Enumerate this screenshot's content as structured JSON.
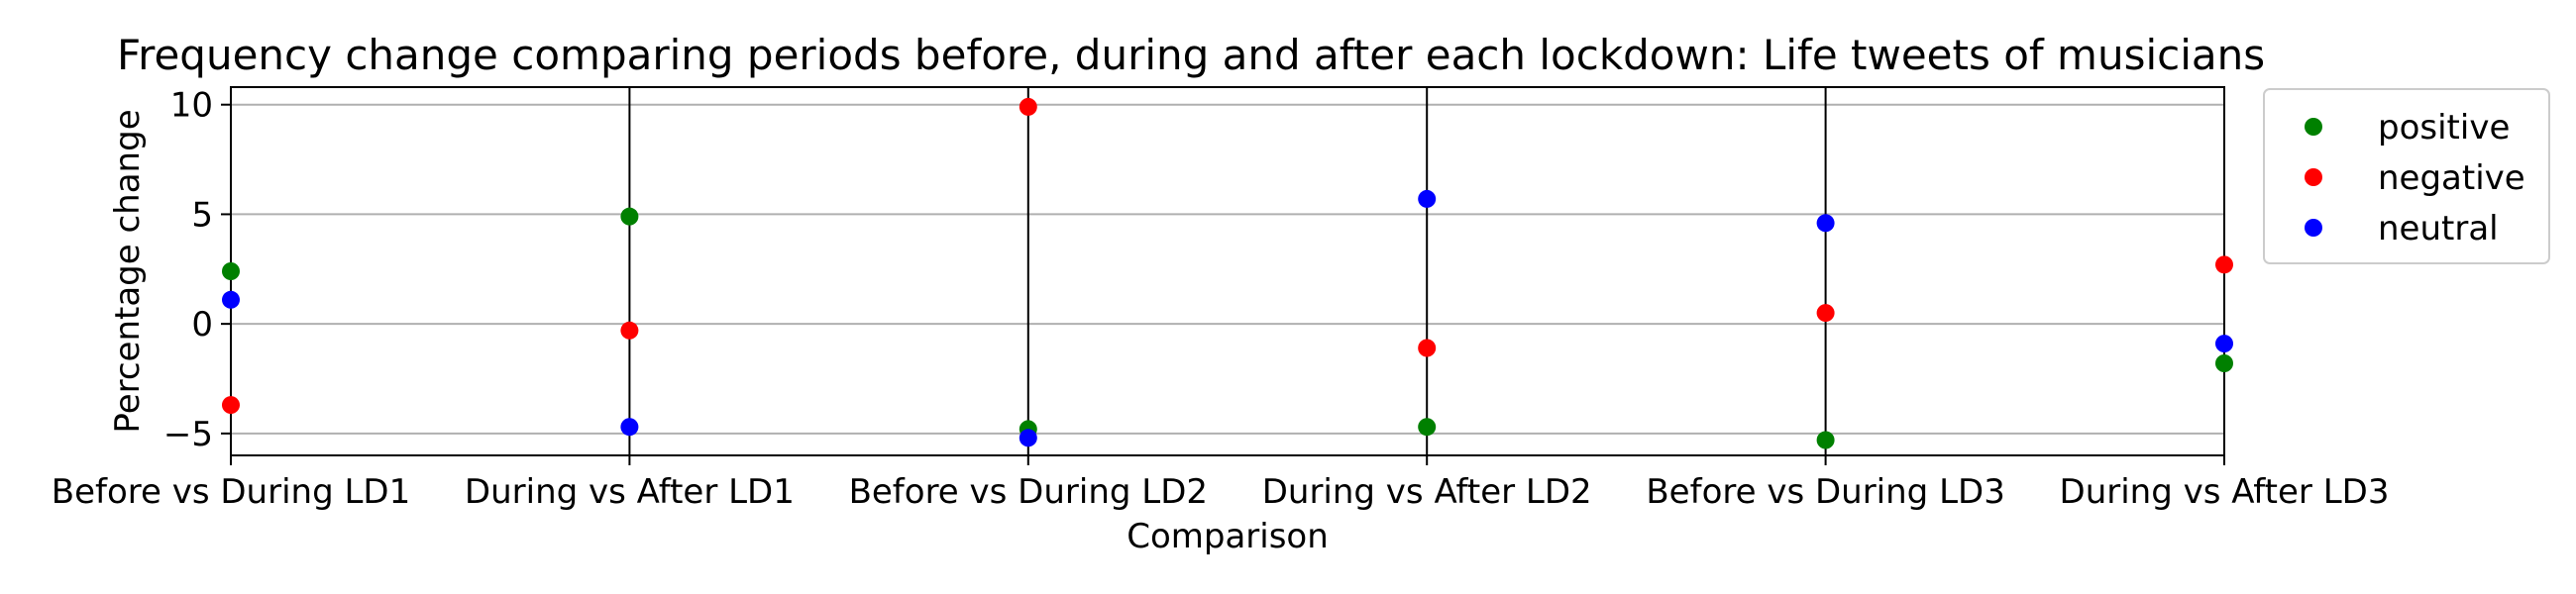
{
  "chart_data": {
    "type": "scatter",
    "title": "Frequency change comparing periods before, during and after each lockdown: Life tweets of musicians",
    "xlabel": "Comparison",
    "ylabel": "Percentage change",
    "categories": [
      "Before vs During LD1",
      "During vs After LD1",
      "Before vs During LD2",
      "During vs After LD2",
      "Before vs During LD3",
      "During vs After LD3"
    ],
    "ylim": [
      -6,
      10.8
    ],
    "yticks": [
      -5,
      0,
      5,
      10
    ],
    "grid": "horizontal",
    "legend_position": "outside-top-right",
    "vertical_lines_at": [
      "During vs After LD1",
      "Before vs During LD2",
      "During vs After LD2",
      "Before vs During LD3"
    ],
    "series": [
      {
        "name": "positive",
        "color": "#008000",
        "values": [
          2.4,
          4.9,
          -4.8,
          -4.7,
          -5.3,
          -1.8
        ]
      },
      {
        "name": "negative",
        "color": "#ff0000",
        "values": [
          -3.7,
          -0.3,
          9.9,
          -1.1,
          0.5,
          2.7
        ]
      },
      {
        "name": "neutral",
        "color": "#0000ff",
        "values": [
          1.1,
          -4.7,
          -5.2,
          5.7,
          4.6,
          -0.9
        ]
      }
    ]
  }
}
